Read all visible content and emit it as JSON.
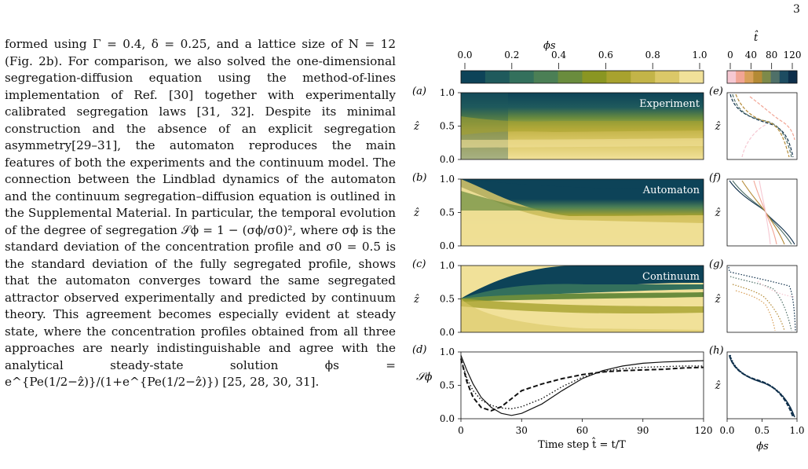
{
  "page_number": "3",
  "paragraph": "formed using Γ = 0.4, δ = 0.25, and a lattice size of N = 12 (Fig. 2b). For comparison, we also solved the one-dimensional segregation-diffusion equation using the method-of-lines implementation of Ref. [30] together with experimentally calibrated segregation laws [31, 32]. Despite its minimal construction and the absence of an explicit segregation asymmetry[29–31], the automaton reproduces the main features of both the experiments and the continuum model. The connection between the Lindblad dynamics of the automaton and the continuum segregation–diffusion equation is outlined in the Supplemental Material. In particular, the temporal evolution of the degree of segregation 𝒮ϕ = 1 − (σϕ/σ0)², where σϕ is the standard deviation of the concentration profile and σ0 = 0.5 is the standard deviation of the fully segregated profile, shows that the automaton converges toward the same segregated attractor observed experimentally and predicted by continuum theory. This agreement becomes especially evident at steady state, where the concentration profiles obtained from all three approaches are nearly indistinguishable and agree with the analytical steady-state solution ϕs = e^{Pe(1/2−ẑ)}/(1+e^{Pe(1/2−ẑ)}) [25, 28, 30, 31].",
  "figure": {
    "colorbar_phi": {
      "label": "ϕs",
      "ticks": [
        "0.0",
        "0.2",
        "0.4",
        "0.6",
        "0.8",
        "1.0"
      ],
      "colors": [
        "#0d4358",
        "#1f5a5c",
        "#33705c",
        "#4b7f55",
        "#6a8c3d",
        "#8a9622",
        "#a8a22e",
        "#c3b448",
        "#dbc868",
        "#f1e199"
      ]
    },
    "colorbar_t": {
      "label": "t̂",
      "ticks": [
        "0",
        "40",
        "80",
        "120"
      ],
      "colors": [
        "#f6c8d2",
        "#f2a595",
        "#d9a05a",
        "#b48a35",
        "#7d8a4a",
        "#4f7068",
        "#1d4c61",
        "#0d2e4a"
      ]
    },
    "panels": {
      "a": {
        "tag": "(a)",
        "title": "Experiment"
      },
      "b": {
        "tag": "(b)",
        "title": "Automaton"
      },
      "c": {
        "tag": "(c)",
        "title": "Continuum"
      },
      "d": {
        "tag": "(d)"
      },
      "e": {
        "tag": "(e)"
      },
      "f": {
        "tag": "(f)"
      },
      "g": {
        "tag": "(g)"
      },
      "h": {
        "tag": "(h)"
      }
    },
    "heatmap_y_label": "ẑ",
    "heatmap_y_ticks": [
      "0.0",
      "0.5",
      "1.0"
    ],
    "d_y_label": "𝒮ϕ",
    "d_y_ticks": [
      "0.0",
      "0.5",
      "1.0"
    ],
    "time_ticks": [
      "0",
      "30",
      "60",
      "90",
      "120"
    ],
    "time_label": "Time step t̂ = t/T",
    "phi_ticks": [
      "0.0",
      "0.5",
      "1.0"
    ],
    "phi_label": "ϕs"
  },
  "chart_data": {
    "type": "line",
    "panel": "(d)",
    "xlabel": "Time step t̂ = t/T",
    "ylabel": "𝒮ϕ",
    "xlim": [
      0,
      120
    ],
    "ylim": [
      0,
      1
    ],
    "series": [
      {
        "style": "solid",
        "x": [
          0,
          3,
          6,
          10,
          15,
          20,
          25,
          30,
          40,
          50,
          60,
          70,
          80,
          90,
          100,
          110,
          120
        ],
        "values": [
          0.95,
          0.72,
          0.52,
          0.32,
          0.17,
          0.08,
          0.05,
          0.08,
          0.22,
          0.42,
          0.6,
          0.72,
          0.79,
          0.83,
          0.85,
          0.86,
          0.87
        ]
      },
      {
        "style": "dotted",
        "x": [
          0,
          3,
          6,
          10,
          15,
          20,
          25,
          30,
          40,
          50,
          60,
          70,
          80,
          90,
          100,
          110,
          120
        ],
        "values": [
          0.9,
          0.6,
          0.42,
          0.28,
          0.2,
          0.16,
          0.15,
          0.18,
          0.3,
          0.48,
          0.62,
          0.71,
          0.75,
          0.77,
          0.78,
          0.79,
          0.79
        ]
      },
      {
        "style": "dashed",
        "x": [
          0,
          3,
          6,
          10,
          15,
          20,
          25,
          30,
          40,
          50,
          60,
          70,
          80,
          90,
          100,
          110,
          120
        ],
        "values": [
          0.9,
          0.55,
          0.32,
          0.17,
          0.12,
          0.18,
          0.3,
          0.42,
          0.52,
          0.6,
          0.66,
          0.7,
          0.72,
          0.73,
          0.74,
          0.76,
          0.77
        ]
      }
    ]
  }
}
